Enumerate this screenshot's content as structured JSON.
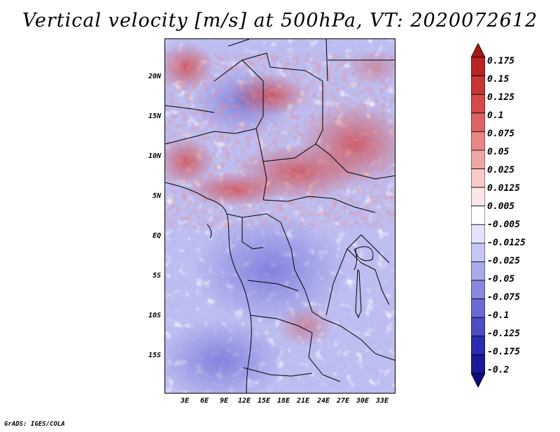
{
  "title": "Vertical velocity [m/s] at 500hPa, VT: 2020072612",
  "credit": "GrADS: IGES/COLA",
  "map": {
    "lat_labels": [
      "20N",
      "15N",
      "10N",
      "5N",
      "EQ",
      "5S",
      "10S",
      "15S"
    ],
    "lon_labels": [
      "3E",
      "6E",
      "9E",
      "12E",
      "15E",
      "18E",
      "21E",
      "24E",
      "27E",
      "30E",
      "33E"
    ],
    "lat_range": [
      -20,
      24.5
    ],
    "lon_range": [
      -0.5,
      35
    ]
  },
  "colorbar": {
    "labels": [
      "0.175",
      "0.15",
      "0.125",
      "0.1",
      "0.075",
      "0.05",
      "0.025",
      "0.0125",
      "0.005",
      "-0.005",
      "-0.0125",
      "-0.025",
      "-0.05",
      "-0.075",
      "-0.1",
      "-0.125",
      "-0.175",
      "-0.2"
    ],
    "colors": [
      "#a01818",
      "#b82323",
      "#c93535",
      "#d44a4a",
      "#de6464",
      "#e88585",
      "#f0a5a5",
      "#f7c9c9",
      "#fde6e6",
      "#ffffff",
      "#e3e3fb",
      "#c6c6f4",
      "#a9a9ec",
      "#8888e0",
      "#6b6bd4",
      "#4c4cc4",
      "#2c2cb0",
      "#1a1a96",
      "#0c0c80"
    ]
  }
}
